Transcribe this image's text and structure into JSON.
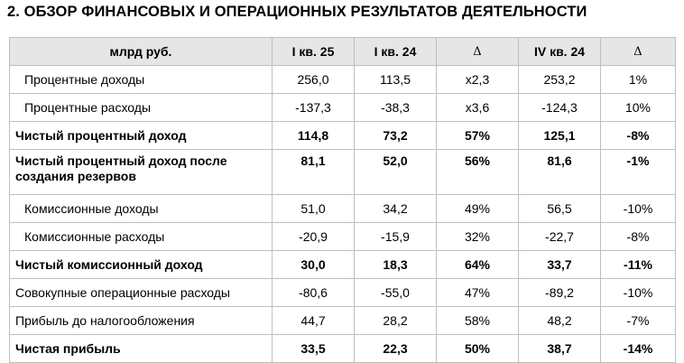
{
  "heading": "2. ОБЗОР ФИНАНСОВЫХ И ОПЕРАЦИОННЫХ РЕЗУЛЬТАТОВ ДЕЯТЕЛЬНОСТИ",
  "table": {
    "headers": [
      "млрд руб.",
      "I кв. 25",
      "I кв. 24",
      "Δ",
      "IV кв. 24",
      "Δ"
    ],
    "rows": [
      {
        "cells": [
          "Процентные доходы",
          "256,0",
          "113,5",
          "x2,3",
          "253,2",
          "1%"
        ]
      },
      {
        "cells": [
          "Процентные расходы",
          "-137,3",
          "-38,3",
          "x3,6",
          "-124,3",
          "10%"
        ]
      },
      {
        "cells": [
          "Чистый процентный доход",
          "114,8",
          "73,2",
          "57%",
          "125,1",
          "-8%"
        ]
      },
      {
        "cells": [
          "Чистый процентный доход после создания резервов",
          "81,1",
          "52,0",
          "56%",
          "81,6",
          "-1%"
        ]
      },
      {
        "cells": [
          "Комиссионные доходы",
          "51,0",
          "34,2",
          "49%",
          "56,5",
          "-10%"
        ]
      },
      {
        "cells": [
          "Комиссионные расходы",
          "-20,9",
          "-15,9",
          "32%",
          "-22,7",
          "-8%"
        ]
      },
      {
        "cells": [
          "Чистый комиссионный доход",
          "30,0",
          "18,3",
          "64%",
          "33,7",
          "-11%"
        ]
      },
      {
        "cells": [
          "Совокупные операционные расходы",
          "-80,6",
          "-55,0",
          "47%",
          "-89,2",
          "-10%"
        ]
      },
      {
        "cells": [
          "Прибыль до налогообложения",
          "44,7",
          "28,2",
          "58%",
          "48,2",
          "-7%"
        ]
      },
      {
        "cells": [
          "Чистая прибыль",
          "33,5",
          "22,3",
          "50%",
          "38,7",
          "-14%"
        ]
      }
    ]
  }
}
